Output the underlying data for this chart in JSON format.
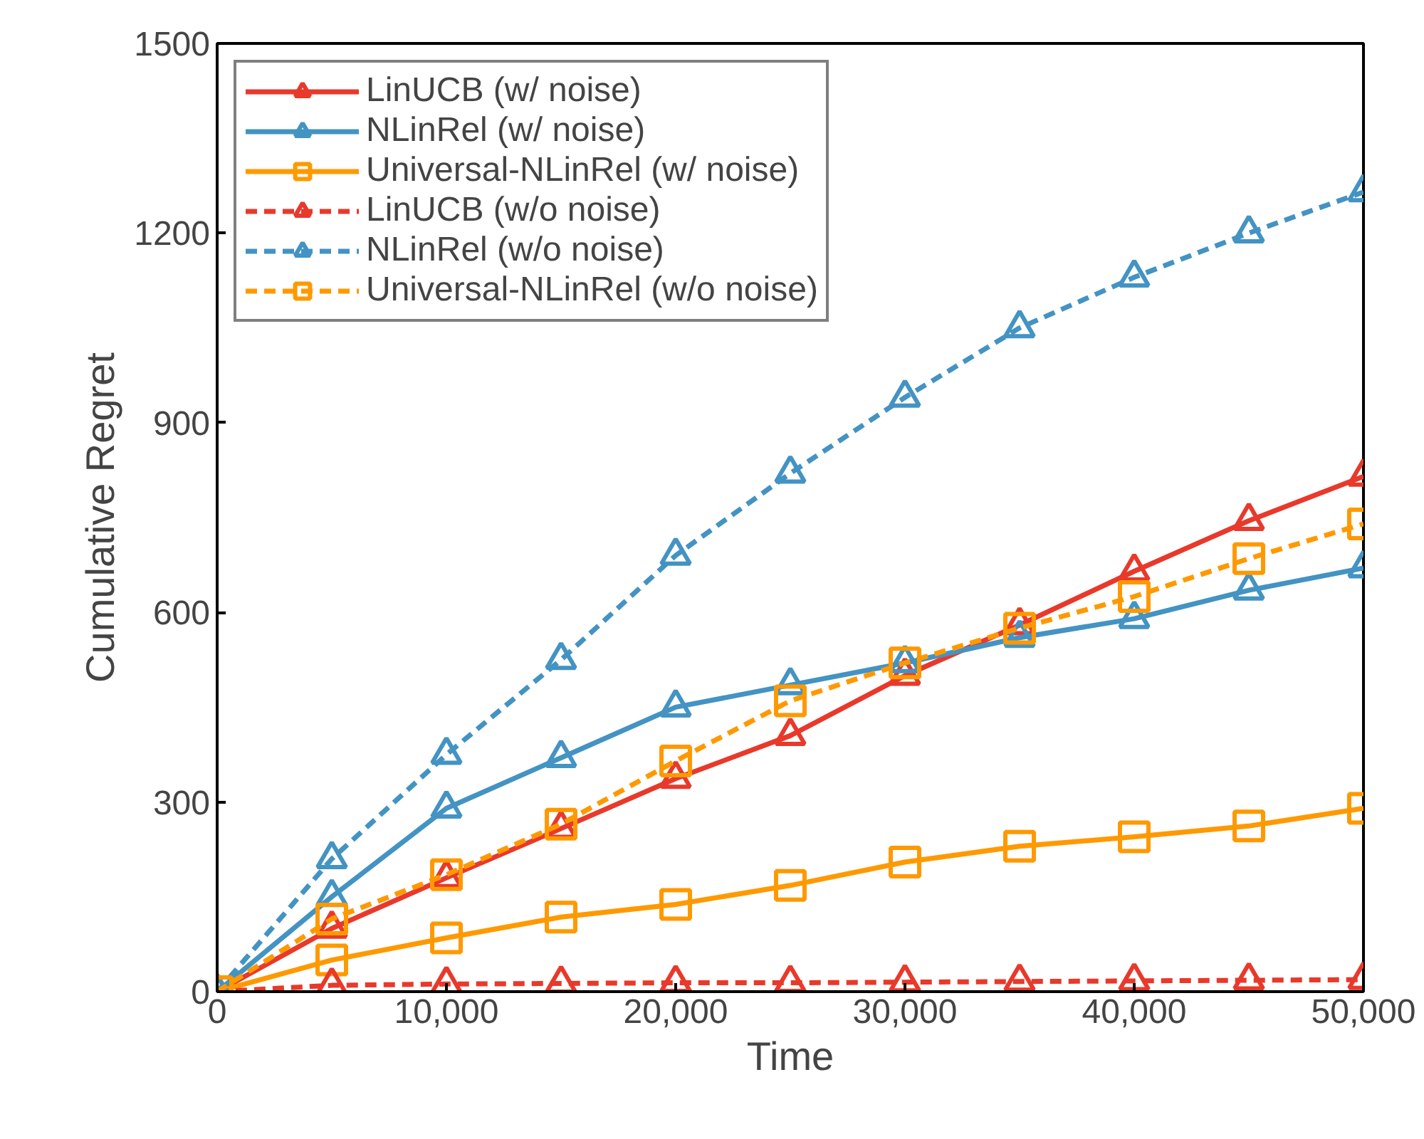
{
  "chart_data": {
    "type": "line",
    "xlabel": "Time",
    "ylabel": "Cumulative Regret",
    "x": [
      0,
      5000,
      10000,
      15000,
      20000,
      25000,
      30000,
      35000,
      40000,
      45000,
      50000
    ],
    "series": [
      {
        "name": "LinUCB (w/ noise)",
        "color": "#e8392b",
        "marker": "triangle",
        "line_style": "solid",
        "values": [
          0,
          100,
          180,
          258,
          337,
          405,
          500,
          580,
          665,
          745,
          815
        ]
      },
      {
        "name": "NLinRel (w/ noise)",
        "color": "#4393c3",
        "marker": "triangle",
        "line_style": "solid",
        "values": [
          0,
          150,
          290,
          370,
          450,
          485,
          520,
          560,
          590,
          635,
          670
        ]
      },
      {
        "name": "Universal-NLinRel (w/ noise)",
        "color": "#ff9900",
        "marker": "square",
        "line_style": "solid",
        "values": [
          0,
          50,
          85,
          118,
          138,
          168,
          205,
          230,
          245,
          262,
          290
        ]
      },
      {
        "name": "LinUCB (w/o noise)",
        "color": "#e8392b",
        "marker": "triangle",
        "line_style": "dashed",
        "values": [
          0,
          10,
          12,
          13,
          14,
          14,
          15,
          16,
          17,
          18,
          19
        ]
      },
      {
        "name": "NLinRel (w/o noise)",
        "color": "#4393c3",
        "marker": "triangle",
        "line_style": "dashed",
        "values": [
          0,
          210,
          375,
          525,
          690,
          820,
          940,
          1050,
          1130,
          1200,
          1265
        ]
      },
      {
        "name": "Universal-NLinRel (w/o noise)",
        "color": "#ff9900",
        "marker": "square",
        "line_style": "dashed",
        "values": [
          0,
          115,
          185,
          265,
          365,
          460,
          520,
          575,
          625,
          685,
          740
        ]
      }
    ],
    "xlim": [
      0,
      50000
    ],
    "ylim": [
      0,
      1500
    ],
    "xticks": [
      0,
      {
        "value": 10000,
        "label": "10,000"
      },
      {
        "value": 20000,
        "label": "20,000"
      },
      {
        "value": 30000,
        "label": "30,000"
      },
      {
        "value": 40000,
        "label": "40,000"
      },
      {
        "value": 50000,
        "label": "50,000"
      }
    ],
    "yticks": [
      0,
      300,
      600,
      900,
      1200,
      1500
    ],
    "grid": false,
    "legend": "top left"
  }
}
